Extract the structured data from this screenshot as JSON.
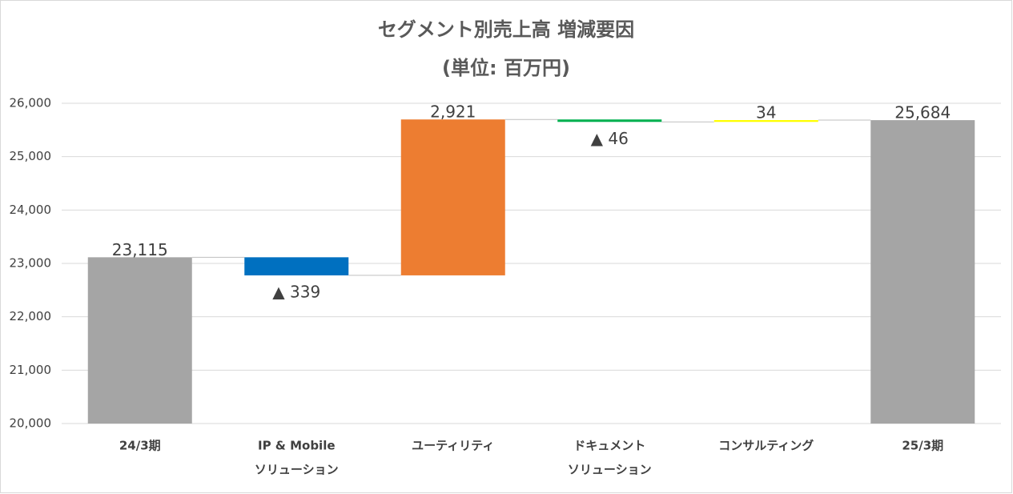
{
  "chart_data": {
    "type": "waterfall",
    "title": "セグメント別売上高 増減要因",
    "subtitle": "(単位: 百万円)",
    "categories": [
      [
        "24/3期"
      ],
      [
        "IP & Mobile",
        "ソリューション"
      ],
      [
        "ユーティリティ"
      ],
      [
        "ドキュメント",
        "ソリューション"
      ],
      [
        "コンサルティング"
      ],
      [
        "25/3期"
      ]
    ],
    "values": [
      23115,
      -339,
      2921,
      -46,
      34,
      25684
    ],
    "value_labels": [
      "23,115",
      "▲ 339",
      "2,921",
      "▲ 46",
      "34",
      "25,684"
    ],
    "colors": [
      "#a5a5a5",
      "#0070c0",
      "#ed7d31",
      "#00b050",
      "#ffff00",
      "#a5a5a5"
    ],
    "totals": [
      0,
      5
    ],
    "ylim": [
      20000,
      26000
    ],
    "yticks": [
      {
        "value": 20000,
        "label": "20,000"
      },
      {
        "value": 21000,
        "label": "21,000"
      },
      {
        "value": 22000,
        "label": "22,000"
      },
      {
        "value": 23000,
        "label": "23,000"
      },
      {
        "value": 24000,
        "label": "24,000"
      },
      {
        "value": 25000,
        "label": "25,000"
      },
      {
        "value": 26000,
        "label": "26,000"
      }
    ],
    "grid": true
  }
}
